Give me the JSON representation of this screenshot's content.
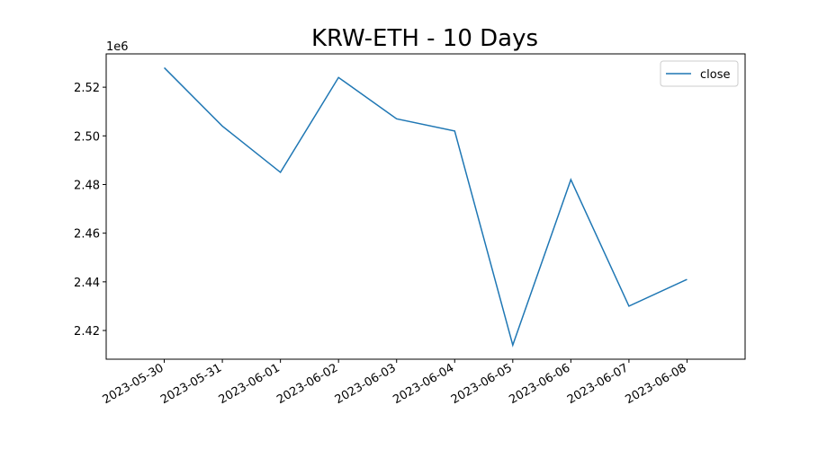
{
  "chart_data": {
    "type": "line",
    "title": "KRW-ETH - 10 Days",
    "x": [
      "2023-05-30",
      "2023-05-31",
      "2023-06-01",
      "2023-06-02",
      "2023-06-03",
      "2023-06-04",
      "2023-06-05",
      "2023-06-06",
      "2023-06-07",
      "2023-06-08"
    ],
    "series": [
      {
        "name": "close",
        "color": "#1f77b4",
        "values": [
          2.528,
          2.504,
          2.485,
          2.524,
          2.507,
          2.502,
          2.414,
          2.482,
          2.43,
          2.441
        ]
      }
    ],
    "xlim": [
      "2023-05-29",
      "2023-06-09"
    ],
    "xticks": [
      "2023-05-30",
      "2023-05-31",
      "2023-06-01",
      "2023-06-02",
      "2023-06-03",
      "2023-06-04",
      "2023-06-05",
      "2023-06-06",
      "2023-06-07",
      "2023-06-08"
    ],
    "ylim": [
      2.4082,
      2.5337
    ],
    "yticks": [
      2.42,
      2.44,
      2.46,
      2.48,
      {
        "value": 2.5,
        "label": "2.50"
      },
      2.52
    ],
    "y_offset_label": "1e6",
    "legend": "upper right",
    "grid": false
  }
}
